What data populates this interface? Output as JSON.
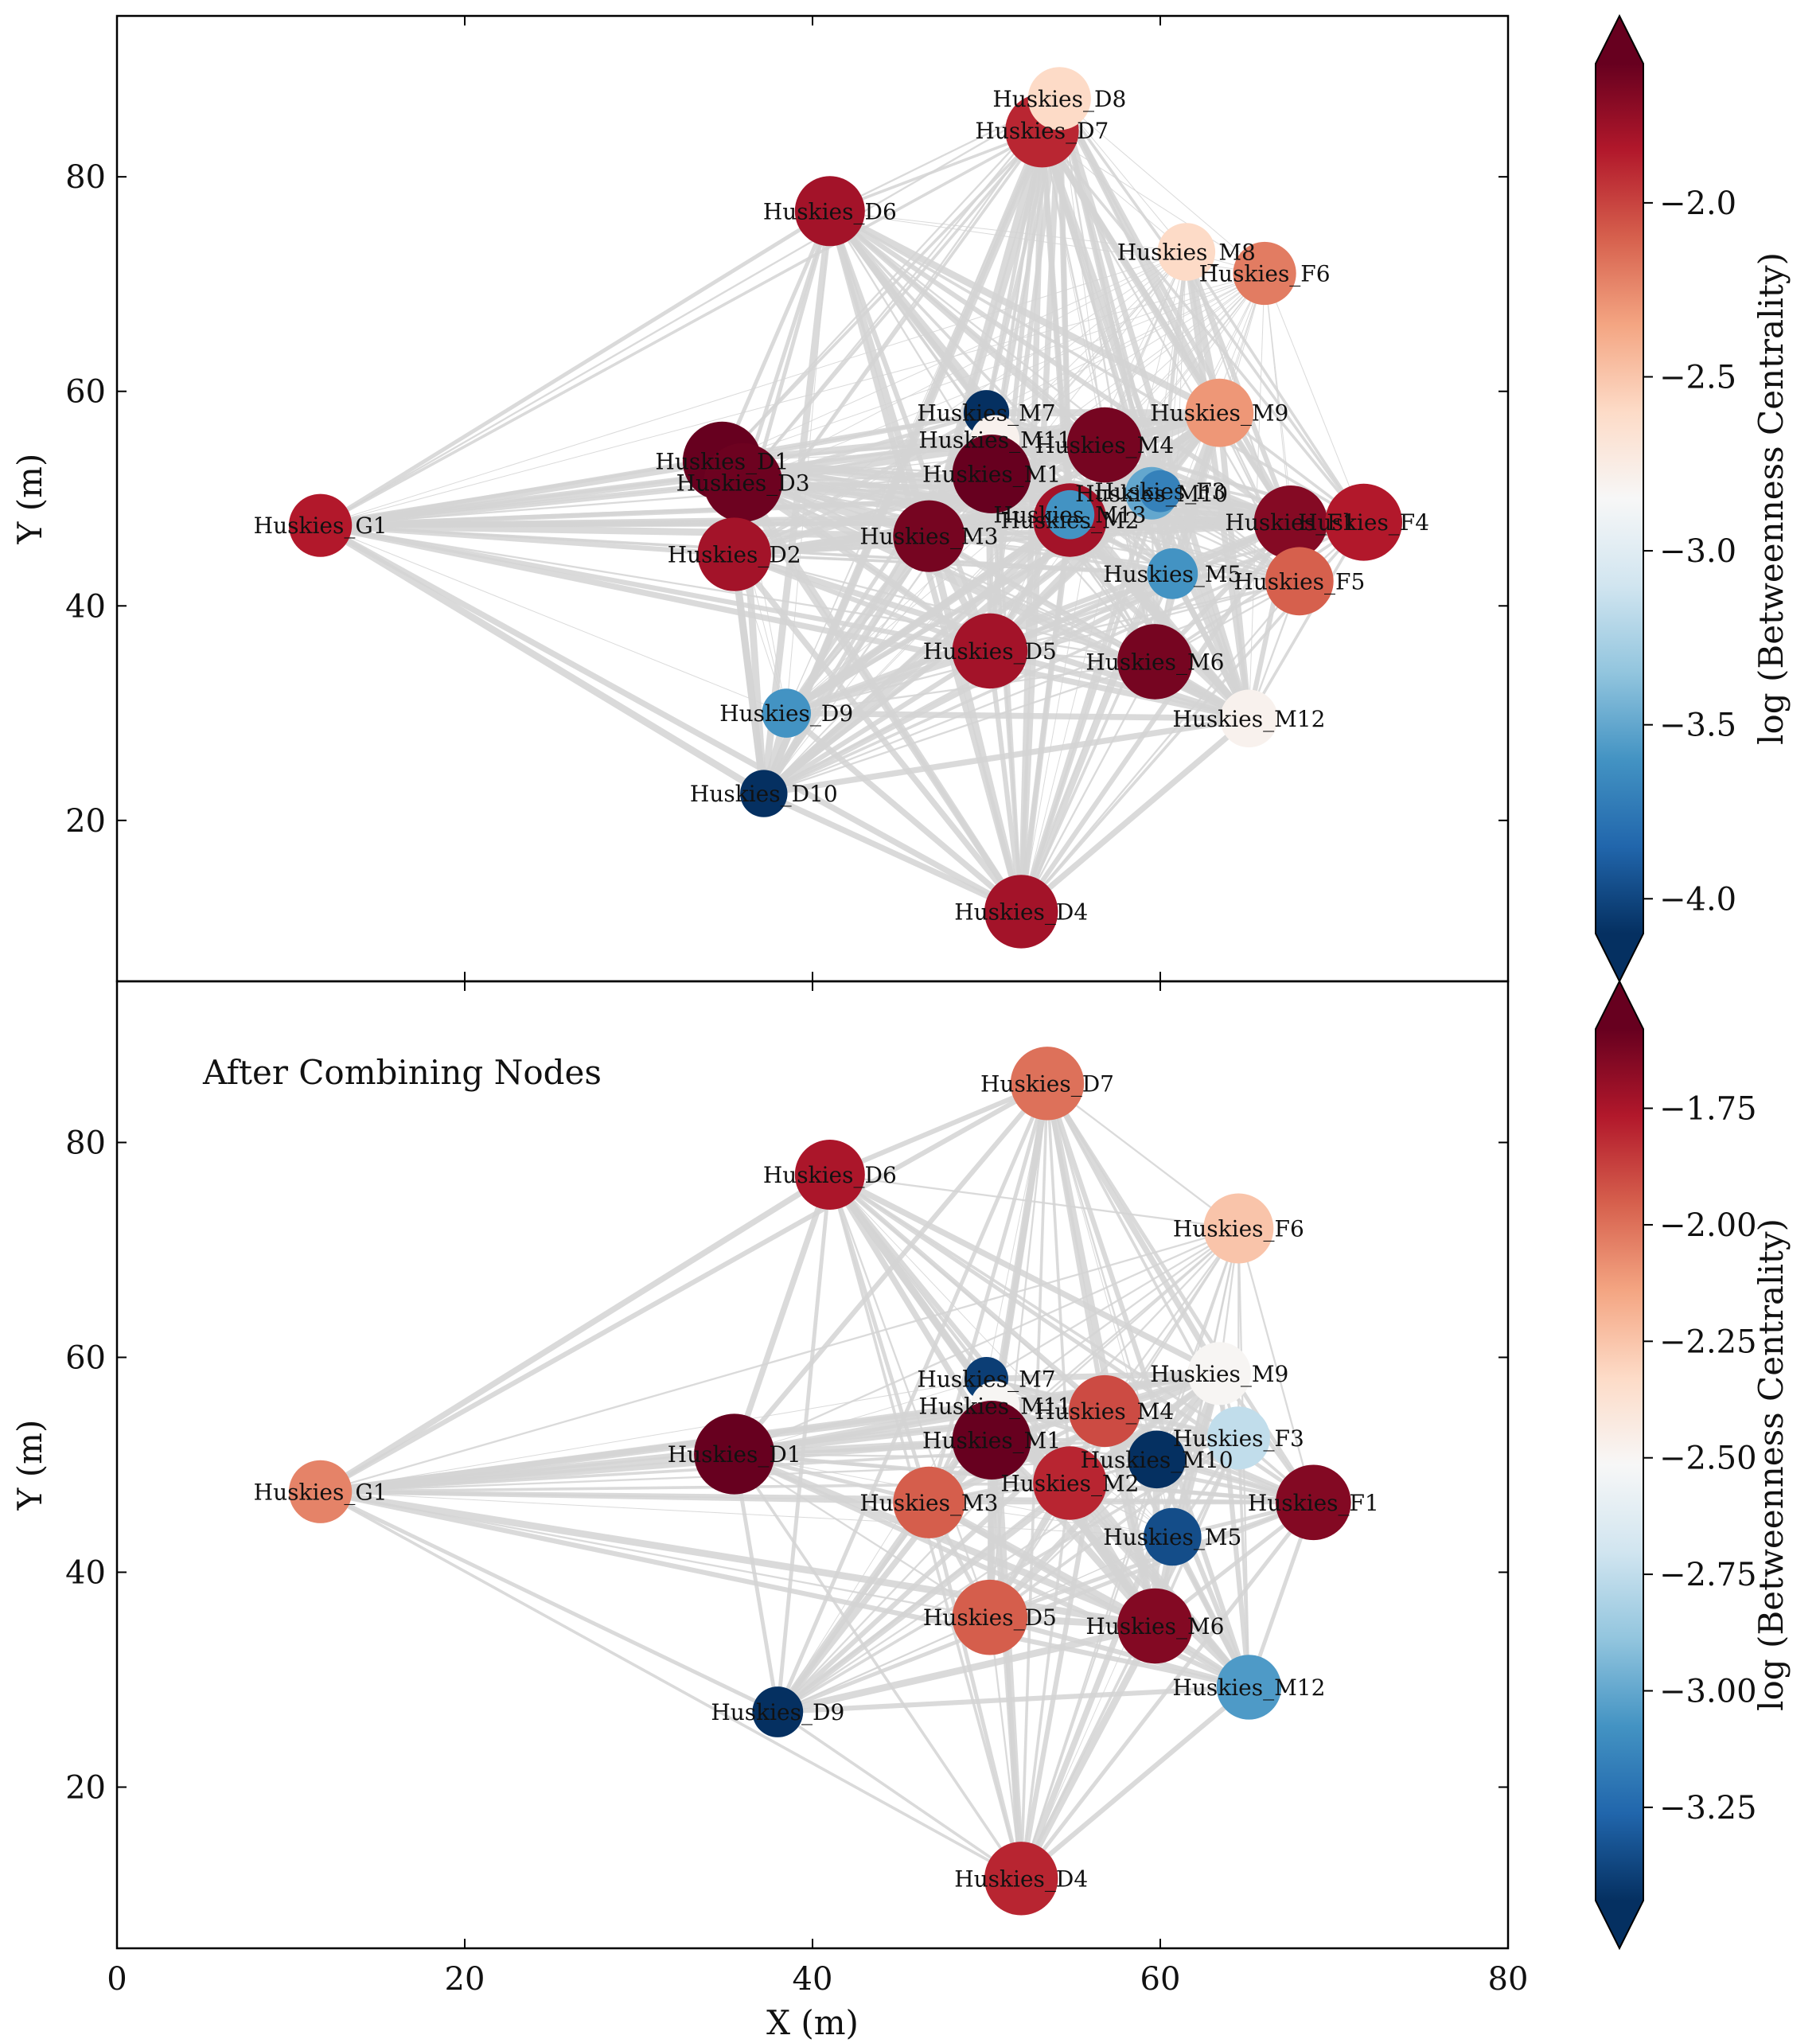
{
  "chart_data": [
    {
      "type": "scatter",
      "subtype": "network",
      "title": "",
      "xlabel": "",
      "ylabel": "Y (m)",
      "xlim": [
        0,
        80
      ],
      "ylim": [
        5,
        95
      ],
      "x_ticks": [
        "0",
        "20",
        "40",
        "60",
        "80"
      ],
      "y_ticks": [
        "20",
        "40",
        "60",
        "80"
      ],
      "show_x_tick_labels": false,
      "annotation": "",
      "colorbar": {
        "label": "log (Betweenness Centrality)",
        "vmin": -4.1,
        "vmax": -1.6,
        "ticks": [
          -4.0,
          -3.5,
          -3.0,
          -2.5,
          -2.0
        ],
        "tick_labels": [
          "−4.0",
          "−3.5",
          "−3.0",
          "−2.5",
          "−2.0"
        ],
        "colormap": "RdBu_r",
        "extend": "both"
      },
      "nodes": [
        {
          "name": "Huskies_G1",
          "x": 11.7,
          "y": 47.5,
          "value": -1.85,
          "size": 3.6
        },
        {
          "name": "Huskies_D1",
          "x": 34.8,
          "y": 53.5,
          "value": -1.6,
          "size": 4.5
        },
        {
          "name": "Huskies_D3",
          "x": 36.0,
          "y": 51.5,
          "value": -1.62,
          "size": 4.5
        },
        {
          "name": "Huskies_D2",
          "x": 35.5,
          "y": 44.8,
          "value": -1.8,
          "size": 4.2
        },
        {
          "name": "Huskies_D6",
          "x": 41.0,
          "y": 76.8,
          "value": -1.8,
          "size": 4.0
        },
        {
          "name": "Huskies_D7",
          "x": 53.2,
          "y": 84.3,
          "value": -1.9,
          "size": 4.2
        },
        {
          "name": "Huskies_D8",
          "x": 54.2,
          "y": 87.3,
          "value": -2.6,
          "size": 3.6
        },
        {
          "name": "Huskies_D9",
          "x": 38.5,
          "y": 30.0,
          "value": -3.6,
          "size": 2.8
        },
        {
          "name": "Huskies_D10",
          "x": 37.2,
          "y": 22.5,
          "value": -4.1,
          "size": 2.7
        },
        {
          "name": "Huskies_D4",
          "x": 52.0,
          "y": 11.5,
          "value": -1.8,
          "size": 4.2
        },
        {
          "name": "Huskies_D5",
          "x": 50.2,
          "y": 35.8,
          "value": -1.8,
          "size": 4.3
        },
        {
          "name": "Huskies_M7",
          "x": 50.0,
          "y": 58.0,
          "value": -4.1,
          "size": 2.6
        },
        {
          "name": "Huskies_M11",
          "x": 50.5,
          "y": 55.5,
          "value": -2.8,
          "size": 2.8
        },
        {
          "name": "Huskies_M1",
          "x": 50.3,
          "y": 52.3,
          "value": -1.6,
          "size": 4.5
        },
        {
          "name": "Huskies_M4",
          "x": 56.8,
          "y": 55.0,
          "value": -1.65,
          "size": 4.3
        },
        {
          "name": "Huskies_M3",
          "x": 46.7,
          "y": 46.5,
          "value": -1.65,
          "size": 4.1
        },
        {
          "name": "Huskies_M2",
          "x": 54.8,
          "y": 48.0,
          "value": -1.8,
          "size": 4.2
        },
        {
          "name": "Huskies_M10",
          "x": 59.5,
          "y": 50.5,
          "value": -3.5,
          "size": 3.0
        },
        {
          "name": "Huskies_M13",
          "x": 54.8,
          "y": 48.5,
          "value": -3.6,
          "size": 2.8
        },
        {
          "name": "Huskies_M5",
          "x": 60.7,
          "y": 43.0,
          "value": -3.6,
          "size": 2.9
        },
        {
          "name": "Huskies_M6",
          "x": 59.7,
          "y": 34.8,
          "value": -1.65,
          "size": 4.3
        },
        {
          "name": "Huskies_M8",
          "x": 61.5,
          "y": 73.0,
          "value": -2.6,
          "size": 3.3
        },
        {
          "name": "Huskies_M9",
          "x": 63.4,
          "y": 58.0,
          "value": -2.3,
          "size": 3.9
        },
        {
          "name": "Huskies_M12",
          "x": 65.1,
          "y": 29.5,
          "value": -2.8,
          "size": 3.3
        },
        {
          "name": "Huskies_F1",
          "x": 67.5,
          "y": 47.8,
          "value": -1.7,
          "size": 4.2
        },
        {
          "name": "Huskies_F3",
          "x": 60.0,
          "y": 50.7,
          "value": -3.7,
          "size": 2.4
        },
        {
          "name": "Huskies_F4",
          "x": 71.7,
          "y": 47.8,
          "value": -1.85,
          "size": 4.4
        },
        {
          "name": "Huskies_F5",
          "x": 68.0,
          "y": 42.3,
          "value": -2.1,
          "size": 3.9
        },
        {
          "name": "Huskies_F6",
          "x": 66.0,
          "y": 71.0,
          "value": -2.2,
          "size": 3.6
        }
      ]
    },
    {
      "type": "scatter",
      "subtype": "network",
      "title": "",
      "xlabel": "X (m)",
      "ylabel": "Y (m)",
      "xlim": [
        0,
        80
      ],
      "ylim": [
        5,
        95
      ],
      "x_ticks": [
        "0",
        "20",
        "40",
        "60",
        "80"
      ],
      "y_ticks": [
        "20",
        "40",
        "60",
        "80"
      ],
      "show_x_tick_labels": true,
      "annotation": "After Combining Nodes",
      "colorbar": {
        "label": "log (Betweenness Centrality)",
        "vmin": -3.45,
        "vmax": -1.58,
        "ticks": [
          -3.25,
          -3.0,
          -2.75,
          -2.5,
          -2.25,
          -2.0,
          -1.75
        ],
        "tick_labels": [
          "−3.25",
          "−3.00",
          "−2.75",
          "−2.50",
          "−2.25",
          "−2.00",
          "−1.75"
        ],
        "colormap": "RdBu_r",
        "extend": "both"
      },
      "nodes": [
        {
          "name": "Huskies_G1",
          "x": 11.7,
          "y": 47.5,
          "value": -2.05,
          "size": 3.6
        },
        {
          "name": "Huskies_D1",
          "x": 35.5,
          "y": 51.0,
          "value": -1.58,
          "size": 4.6
        },
        {
          "name": "Huskies_D6",
          "x": 41.0,
          "y": 77.0,
          "value": -1.75,
          "size": 4.0
        },
        {
          "name": "Huskies_D7",
          "x": 53.5,
          "y": 85.5,
          "value": -2.0,
          "size": 4.2
        },
        {
          "name": "Huskies_D9",
          "x": 38.0,
          "y": 27.0,
          "value": -3.45,
          "size": 2.9
        },
        {
          "name": "Huskies_D4",
          "x": 52.0,
          "y": 11.5,
          "value": -1.8,
          "size": 4.2
        },
        {
          "name": "Huskies_D5",
          "x": 50.2,
          "y": 35.8,
          "value": -1.95,
          "size": 4.3
        },
        {
          "name": "Huskies_M7",
          "x": 50.0,
          "y": 58.0,
          "value": -3.4,
          "size": 2.5
        },
        {
          "name": "Huskies_M11",
          "x": 50.5,
          "y": 55.5,
          "value": -2.5,
          "size": 2.8
        },
        {
          "name": "Huskies_M1",
          "x": 50.3,
          "y": 52.3,
          "value": -1.58,
          "size": 4.5
        },
        {
          "name": "Huskies_M4",
          "x": 56.8,
          "y": 55.0,
          "value": -1.9,
          "size": 4.1
        },
        {
          "name": "Huskies_M3",
          "x": 46.7,
          "y": 46.5,
          "value": -1.95,
          "size": 4.1
        },
        {
          "name": "Huskies_M2",
          "x": 54.8,
          "y": 48.3,
          "value": -1.8,
          "size": 4.2
        },
        {
          "name": "Huskies_M10",
          "x": 59.8,
          "y": 50.5,
          "value": -3.45,
          "size": 3.3
        },
        {
          "name": "Huskies_M5",
          "x": 60.7,
          "y": 43.3,
          "value": -3.35,
          "size": 3.3
        },
        {
          "name": "Huskies_M6",
          "x": 59.7,
          "y": 35.0,
          "value": -1.65,
          "size": 4.3
        },
        {
          "name": "Huskies_M9",
          "x": 63.4,
          "y": 58.5,
          "value": -2.5,
          "size": 3.6
        },
        {
          "name": "Huskies_M12",
          "x": 65.1,
          "y": 29.3,
          "value": -3.05,
          "size": 3.7
        },
        {
          "name": "Huskies_F1",
          "x": 68.8,
          "y": 46.5,
          "value": -1.65,
          "size": 4.3
        },
        {
          "name": "Huskies_F3",
          "x": 64.5,
          "y": 52.5,
          "value": -2.75,
          "size": 3.6
        },
        {
          "name": "Huskies_F6",
          "x": 64.5,
          "y": 72.0,
          "value": -2.25,
          "size": 4.0
        }
      ]
    }
  ]
}
